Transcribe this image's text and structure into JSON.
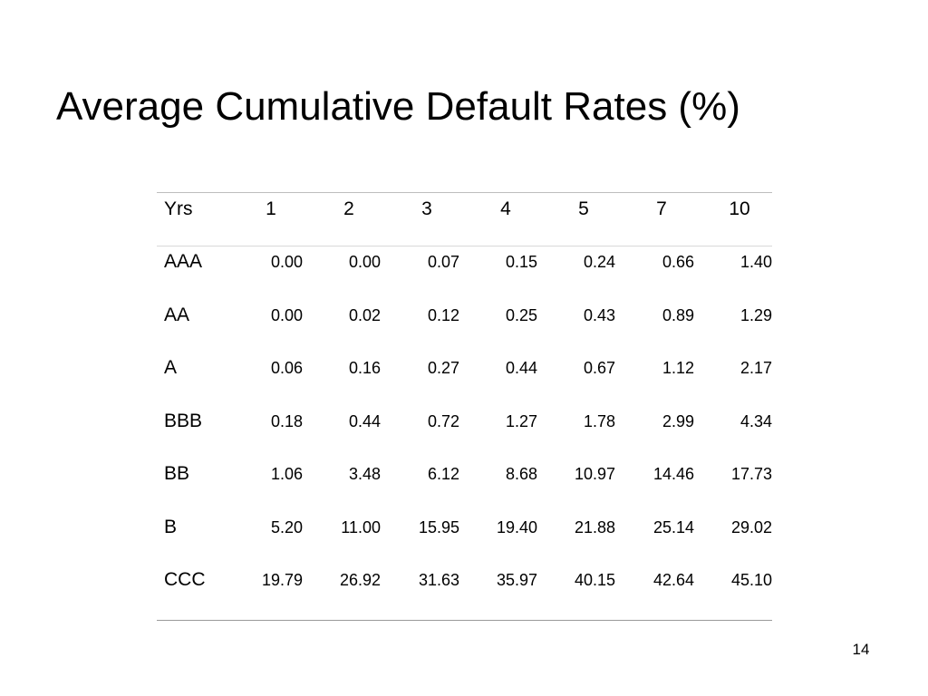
{
  "slide": {
    "title": "Average Cumulative Default Rates (%)",
    "page_number": "14"
  },
  "table": {
    "header_label": "Yrs",
    "columns": [
      "1",
      "2",
      "3",
      "4",
      "5",
      "7",
      "10"
    ],
    "rows": [
      {
        "label": "AAA",
        "values": [
          "0.00",
          "0.00",
          "0.07",
          "0.15",
          "0.24",
          "0.66",
          "1.40"
        ]
      },
      {
        "label": "AA",
        "values": [
          "0.00",
          "0.02",
          "0.12",
          "0.25",
          "0.43",
          "0.89",
          "1.29"
        ]
      },
      {
        "label": "A",
        "values": [
          "0.06",
          "0.16",
          "0.27",
          "0.44",
          "0.67",
          "1.12",
          "2.17"
        ]
      },
      {
        "label": "BBB",
        "values": [
          "0.18",
          "0.44",
          "0.72",
          "1.27",
          "1.78",
          "2.99",
          "4.34"
        ]
      },
      {
        "label": "BB",
        "values": [
          "1.06",
          "3.48",
          "6.12",
          "8.68",
          "10.97",
          "14.46",
          "17.73"
        ]
      },
      {
        "label": "B",
        "values": [
          "5.20",
          "11.00",
          "15.95",
          "19.40",
          "21.88",
          "25.14",
          "29.02"
        ]
      },
      {
        "label": "CCC",
        "values": [
          "19.79",
          "26.92",
          "31.63",
          "35.97",
          "40.15",
          "42.64",
          "45.10"
        ]
      }
    ]
  }
}
